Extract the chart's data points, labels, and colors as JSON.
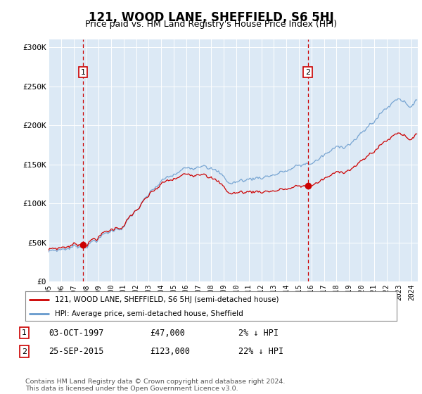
{
  "title": "121, WOOD LANE, SHEFFIELD, S6 5HJ",
  "subtitle": "Price paid vs. HM Land Registry's House Price Index (HPI)",
  "ylabel_ticks": [
    "£0",
    "£50K",
    "£100K",
    "£150K",
    "£200K",
    "£250K",
    "£300K"
  ],
  "ylim": [
    0,
    310000
  ],
  "yticks": [
    0,
    50000,
    100000,
    150000,
    200000,
    250000,
    300000
  ],
  "bg_color": "#dce9f5",
  "hpi_color": "#6699cc",
  "sale_color": "#cc0000",
  "vline_color": "#cc0000",
  "marker_color": "#cc0000",
  "annotation_box_color": "#cc0000",
  "sale1_date_num": 1997.75,
  "sale1_price": 47000,
  "sale1_label": "1",
  "sale1_date_str": "03-OCT-1997",
  "sale1_pct": "2% ↓ HPI",
  "sale2_date_num": 2015.72,
  "sale2_price": 123000,
  "sale2_label": "2",
  "sale2_date_str": "25-SEP-2015",
  "sale2_pct": "22% ↓ HPI",
  "legend_line1": "121, WOOD LANE, SHEFFIELD, S6 5HJ (semi-detached house)",
  "legend_line2": "HPI: Average price, semi-detached house, Sheffield",
  "footer": "Contains HM Land Registry data © Crown copyright and database right 2024.\nThis data is licensed under the Open Government Licence v3.0.",
  "title_fontsize": 12,
  "subtitle_fontsize": 9,
  "tick_fontsize": 8
}
